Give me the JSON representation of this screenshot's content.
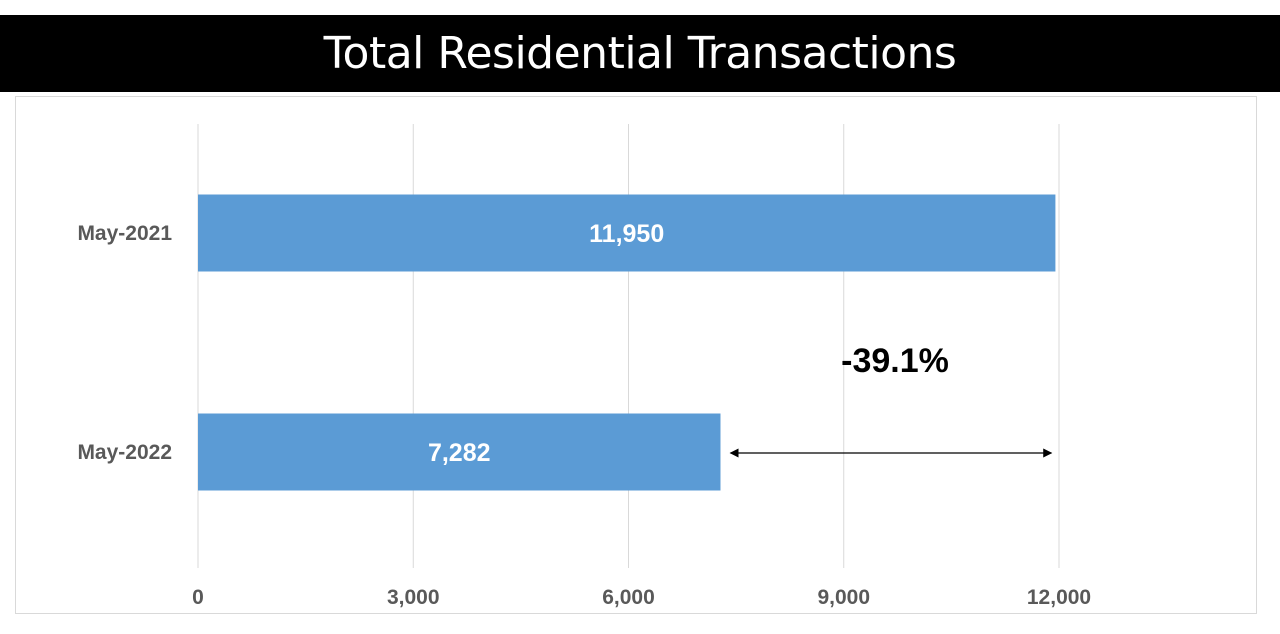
{
  "chart_data": {
    "type": "bar",
    "orientation": "horizontal",
    "title": "Total Residential Transactions",
    "categories": [
      "May-2021",
      "May-2022"
    ],
    "values": [
      11950,
      7282
    ],
    "value_labels": [
      "11,950",
      "7,282"
    ],
    "xlabel": "",
    "ylabel": "",
    "xlim": [
      0,
      12000
    ],
    "x_ticks": [
      0,
      3000,
      6000,
      9000,
      12000
    ],
    "x_tick_labels": [
      "0",
      "3,000",
      "6,000",
      "9,000",
      "12,000"
    ],
    "grid": "vertical",
    "legend": "none",
    "bar_color": "#5b9bd5",
    "annotation": {
      "text": "-39.1%",
      "from_value": 7282,
      "to_value": 11950
    }
  }
}
